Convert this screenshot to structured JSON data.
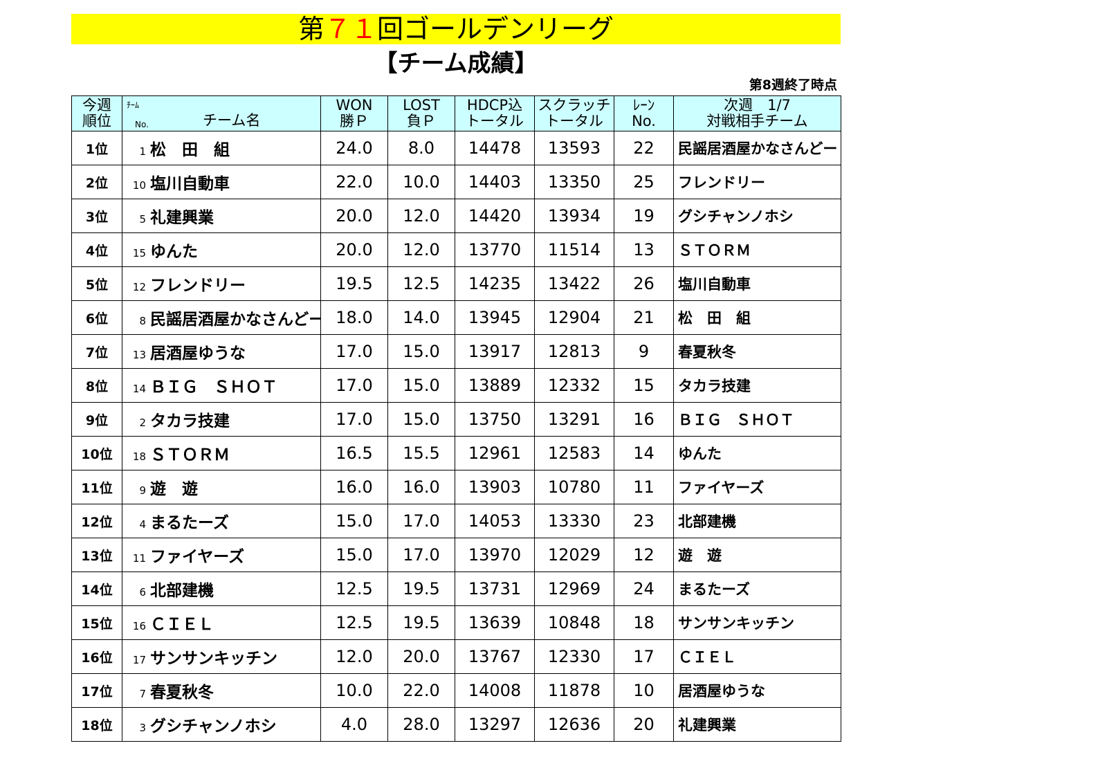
{
  "title": {
    "prefix": "第",
    "number": "７１",
    "suffix": "回ゴールデンリーグ"
  },
  "subtitle": "【チーム成績】",
  "as_of": "第8週終了時点",
  "headers": {
    "rank_1": "今週",
    "rank_2": "順位",
    "team_top": "ﾁｰﾑ",
    "team_no": "No.",
    "team_name": "チーム名",
    "won_1": "WON",
    "won_2": "勝Ｐ",
    "lost_1": "LOST",
    "lost_2": "負Ｐ",
    "hdcp_1": "HDCP込",
    "hdcp_2": "トータル",
    "scratch_1": "スクラッチ",
    "scratch_2": "トータル",
    "lane_1": "ﾚｰﾝ",
    "lane_2": "No.",
    "opp_1": "次週　1/7",
    "opp_2": "対戦相手チーム"
  },
  "rows": [
    {
      "rank": "1位",
      "no": "1",
      "team": "松　田　組",
      "won": "24.0",
      "lost": "8.0",
      "hdcp": "14478",
      "scratch": "13593",
      "lane": "22",
      "opponent": "民謡居酒屋かなさんどー"
    },
    {
      "rank": "2位",
      "no": "10",
      "team": "塩川自動車",
      "won": "22.0",
      "lost": "10.0",
      "hdcp": "14403",
      "scratch": "13350",
      "lane": "25",
      "opponent": "フレンドリー"
    },
    {
      "rank": "3位",
      "no": "5",
      "team": "礼建興業",
      "won": "20.0",
      "lost": "12.0",
      "hdcp": "14420",
      "scratch": "13934",
      "lane": "19",
      "opponent": "グシチャンノホシ"
    },
    {
      "rank": "4位",
      "no": "15",
      "team": "ゆんた",
      "won": "20.0",
      "lost": "12.0",
      "hdcp": "13770",
      "scratch": "11514",
      "lane": "13",
      "opponent": "ＳＴＯＲＭ"
    },
    {
      "rank": "5位",
      "no": "12",
      "team": "フレンドリー",
      "won": "19.5",
      "lost": "12.5",
      "hdcp": "14235",
      "scratch": "13422",
      "lane": "26",
      "opponent": "塩川自動車"
    },
    {
      "rank": "6位",
      "no": "8",
      "team": "民謡居酒屋かなさんどー",
      "won": "18.0",
      "lost": "14.0",
      "hdcp": "13945",
      "scratch": "12904",
      "lane": "21",
      "opponent": "松　田　組"
    },
    {
      "rank": "7位",
      "no": "13",
      "team": "居酒屋ゆうな",
      "won": "17.0",
      "lost": "15.0",
      "hdcp": "13917",
      "scratch": "12813",
      "lane": "9",
      "opponent": "春夏秋冬"
    },
    {
      "rank": "8位",
      "no": "14",
      "team": "ＢＩＧ　ＳＨＯＴ",
      "won": "17.0",
      "lost": "15.0",
      "hdcp": "13889",
      "scratch": "12332",
      "lane": "15",
      "opponent": "タカラ技建"
    },
    {
      "rank": "9位",
      "no": "2",
      "team": "タカラ技建",
      "won": "17.0",
      "lost": "15.0",
      "hdcp": "13750",
      "scratch": "13291",
      "lane": "16",
      "opponent": "ＢＩＧ　ＳＨＯＴ"
    },
    {
      "rank": "10位",
      "no": "18",
      "team": "ＳＴＯＲＭ",
      "won": "16.5",
      "lost": "15.5",
      "hdcp": "12961",
      "scratch": "12583",
      "lane": "14",
      "opponent": "ゆんた"
    },
    {
      "rank": "11位",
      "no": "9",
      "team": "遊　遊",
      "won": "16.0",
      "lost": "16.0",
      "hdcp": "13903",
      "scratch": "10780",
      "lane": "11",
      "opponent": "ファイヤーズ"
    },
    {
      "rank": "12位",
      "no": "4",
      "team": "まるたーズ",
      "won": "15.0",
      "lost": "17.0",
      "hdcp": "14053",
      "scratch": "13330",
      "lane": "23",
      "opponent": "北部建機"
    },
    {
      "rank": "13位",
      "no": "11",
      "team": "ファイヤーズ",
      "won": "15.0",
      "lost": "17.0",
      "hdcp": "13970",
      "scratch": "12029",
      "lane": "12",
      "opponent": "遊　遊"
    },
    {
      "rank": "14位",
      "no": "6",
      "team": "北部建機",
      "won": "12.5",
      "lost": "19.5",
      "hdcp": "13731",
      "scratch": "12969",
      "lane": "24",
      "opponent": "まるたーズ"
    },
    {
      "rank": "15位",
      "no": "16",
      "team": "ＣＩＥＬ",
      "won": "12.5",
      "lost": "19.5",
      "hdcp": "13639",
      "scratch": "10848",
      "lane": "18",
      "opponent": "サンサンキッチン"
    },
    {
      "rank": "16位",
      "no": "17",
      "team": "サンサンキッチン",
      "won": "12.0",
      "lost": "20.0",
      "hdcp": "13767",
      "scratch": "12330",
      "lane": "17",
      "opponent": "ＣＩＥＬ"
    },
    {
      "rank": "17位",
      "no": "7",
      "team": "春夏秋冬",
      "won": "10.0",
      "lost": "22.0",
      "hdcp": "14008",
      "scratch": "11878",
      "lane": "10",
      "opponent": "居酒屋ゆうな"
    },
    {
      "rank": "18位",
      "no": "3",
      "team": "グシチャンノホシ",
      "won": "4.0",
      "lost": "28.0",
      "hdcp": "13297",
      "scratch": "12636",
      "lane": "20",
      "opponent": "礼建興業"
    }
  ]
}
